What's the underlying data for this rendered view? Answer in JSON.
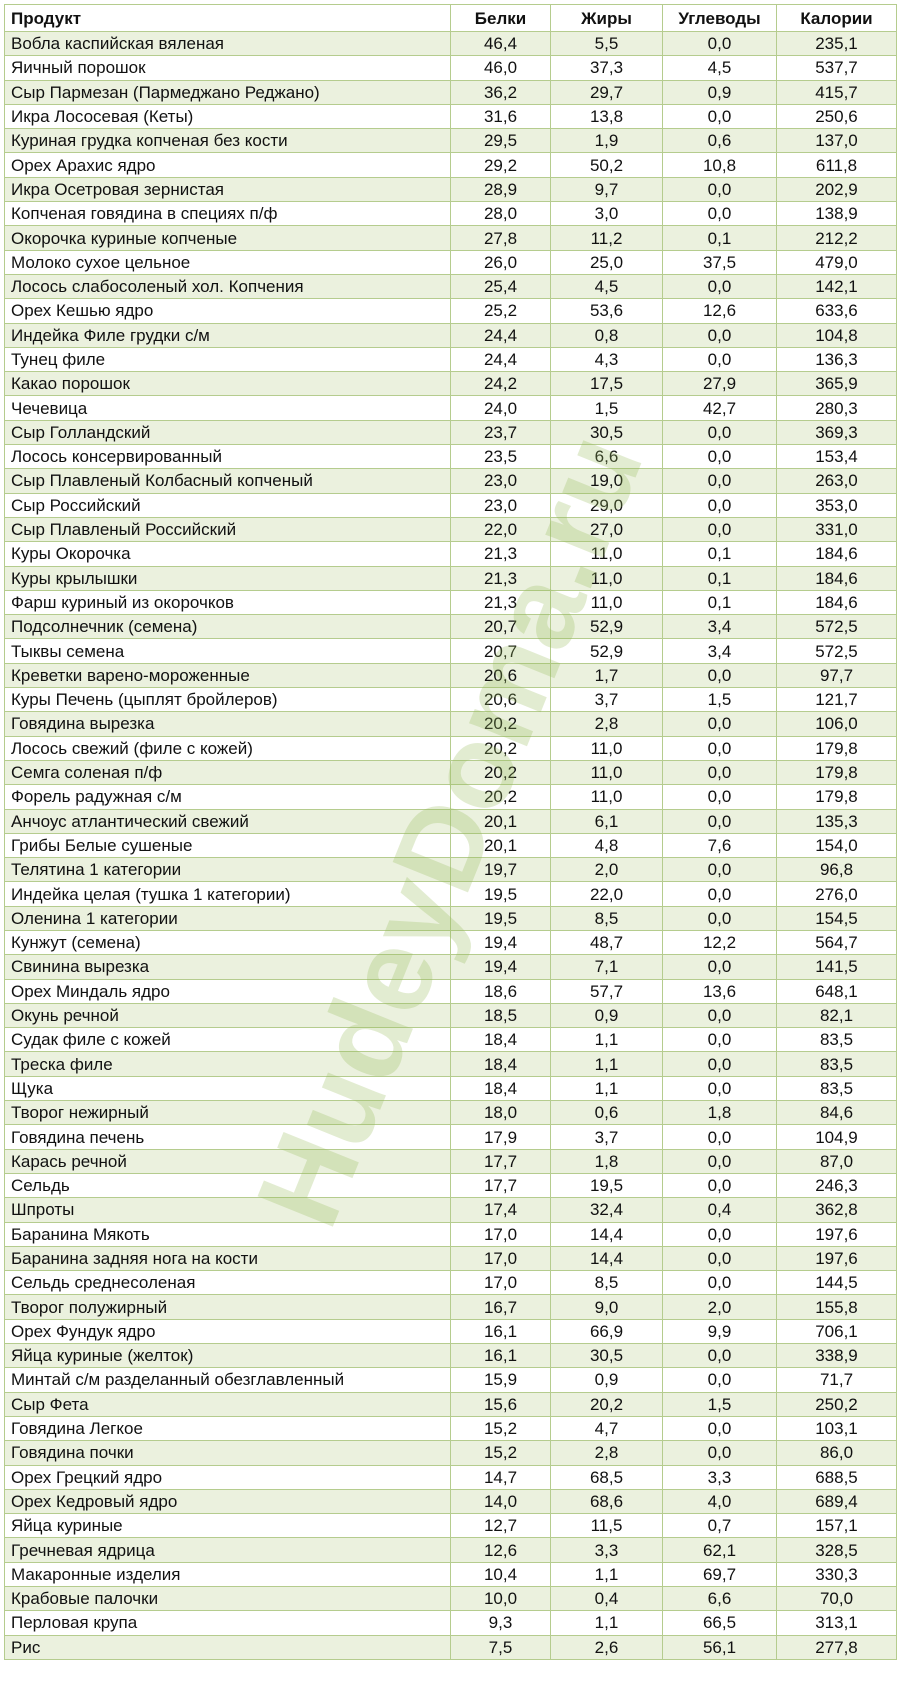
{
  "watermark": "HudeyDoma.ru",
  "table": {
    "header": [
      "Продукт",
      "Белки",
      "Жиры",
      "Углеводы",
      "Калории"
    ],
    "rows": [
      [
        "Вобла каспийская вяленая",
        "46,4",
        "5,5",
        "0,0",
        "235,1"
      ],
      [
        "Яичный порошок",
        "46,0",
        "37,3",
        "4,5",
        "537,7"
      ],
      [
        "Сыр Пармезан (Пармеджано Реджано)",
        "36,2",
        "29,7",
        "0,9",
        "415,7"
      ],
      [
        "Икра Лососевая (Кеты)",
        "31,6",
        "13,8",
        "0,0",
        "250,6"
      ],
      [
        "Куриная грудка копченая без кости",
        "29,5",
        "1,9",
        "0,6",
        "137,0"
      ],
      [
        "Орех Арахис ядро",
        "29,2",
        "50,2",
        "10,8",
        "611,8"
      ],
      [
        "Икра Осетровая зернистая",
        "28,9",
        "9,7",
        "0,0",
        "202,9"
      ],
      [
        "Копченая говядина в специях п/ф",
        "28,0",
        "3,0",
        "0,0",
        "138,9"
      ],
      [
        "Окорочка куриные копченые",
        "27,8",
        "11,2",
        "0,1",
        "212,2"
      ],
      [
        "Молоко сухое цельное",
        "26,0",
        "25,0",
        "37,5",
        "479,0"
      ],
      [
        "Лосось слабосоленый хол. Копчения",
        "25,4",
        "4,5",
        "0,0",
        "142,1"
      ],
      [
        "Орех Кешью ядро",
        "25,2",
        "53,6",
        "12,6",
        "633,6"
      ],
      [
        "Индейка Филе грудки с/м",
        "24,4",
        "0,8",
        "0,0",
        "104,8"
      ],
      [
        "Тунец филе",
        "24,4",
        "4,3",
        "0,0",
        "136,3"
      ],
      [
        "Какао порошок",
        "24,2",
        "17,5",
        "27,9",
        "365,9"
      ],
      [
        "Чечевица",
        "24,0",
        "1,5",
        "42,7",
        "280,3"
      ],
      [
        "Сыр Голландский",
        "23,7",
        "30,5",
        "0,0",
        "369,3"
      ],
      [
        "Лосось консервированный",
        "23,5",
        "6,6",
        "0,0",
        "153,4"
      ],
      [
        "Сыр Плавленый Колбасный копченый",
        "23,0",
        "19,0",
        "0,0",
        "263,0"
      ],
      [
        "Сыр Российский",
        "23,0",
        "29,0",
        "0,0",
        "353,0"
      ],
      [
        "Сыр Плавленый Российский",
        "22,0",
        "27,0",
        "0,0",
        "331,0"
      ],
      [
        "Куры Окорочка",
        "21,3",
        "11,0",
        "0,1",
        "184,6"
      ],
      [
        "Куры крылышки",
        "21,3",
        "11,0",
        "0,1",
        "184,6"
      ],
      [
        "Фарш куриный из окорочков",
        "21,3",
        "11,0",
        "0,1",
        "184,6"
      ],
      [
        "Подсолнечник (семена)",
        "20,7",
        "52,9",
        "3,4",
        "572,5"
      ],
      [
        "Тыквы семена",
        "20,7",
        "52,9",
        "3,4",
        "572,5"
      ],
      [
        "Креветки варено-мороженные",
        "20,6",
        "1,7",
        "0,0",
        "97,7"
      ],
      [
        "Куры Печень (цыплят бройлеров)",
        "20,6",
        "3,7",
        "1,5",
        "121,7"
      ],
      [
        "Говядина вырезка",
        "20,2",
        "2,8",
        "0,0",
        "106,0"
      ],
      [
        "Лосось свежий (филе с кожей)",
        "20,2",
        "11,0",
        "0,0",
        "179,8"
      ],
      [
        "Семга соленая п/ф",
        "20,2",
        "11,0",
        "0,0",
        "179,8"
      ],
      [
        "Форель радужная с/м",
        "20,2",
        "11,0",
        "0,0",
        "179,8"
      ],
      [
        "Анчоус атлантический свежий",
        "20,1",
        "6,1",
        "0,0",
        "135,3"
      ],
      [
        "Грибы Белые сушеные",
        "20,1",
        "4,8",
        "7,6",
        "154,0"
      ],
      [
        "Телятина 1 категории",
        "19,7",
        "2,0",
        "0,0",
        "96,8"
      ],
      [
        "Индейка целая (тушка 1 категории)",
        "19,5",
        "22,0",
        "0,0",
        "276,0"
      ],
      [
        "Оленина 1 категории",
        "19,5",
        "8,5",
        "0,0",
        "154,5"
      ],
      [
        "Кунжут (семена)",
        "19,4",
        "48,7",
        "12,2",
        "564,7"
      ],
      [
        "Свинина вырезка",
        "19,4",
        "7,1",
        "0,0",
        "141,5"
      ],
      [
        "Орех Миндаль ядро",
        "18,6",
        "57,7",
        "13,6",
        "648,1"
      ],
      [
        "Окунь речной",
        "18,5",
        "0,9",
        "0,0",
        "82,1"
      ],
      [
        "Судак филе с кожей",
        "18,4",
        "1,1",
        "0,0",
        "83,5"
      ],
      [
        "Треска филе",
        "18,4",
        "1,1",
        "0,0",
        "83,5"
      ],
      [
        "Щука",
        "18,4",
        "1,1",
        "0,0",
        "83,5"
      ],
      [
        "Творог нежирный",
        "18,0",
        "0,6",
        "1,8",
        "84,6"
      ],
      [
        "Говядина печень",
        "17,9",
        "3,7",
        "0,0",
        "104,9"
      ],
      [
        "Карась речной",
        "17,7",
        "1,8",
        "0,0",
        "87,0"
      ],
      [
        "Сельдь",
        "17,7",
        "19,5",
        "0,0",
        "246,3"
      ],
      [
        "Шпроты",
        "17,4",
        "32,4",
        "0,4",
        "362,8"
      ],
      [
        "Баранина Мякоть",
        "17,0",
        "14,4",
        "0,0",
        "197,6"
      ],
      [
        "Баранина задняя нога на кости",
        "17,0",
        "14,4",
        "0,0",
        "197,6"
      ],
      [
        "Сельдь среднесоленая",
        "17,0",
        "8,5",
        "0,0",
        "144,5"
      ],
      [
        "Творог полужирный",
        "16,7",
        "9,0",
        "2,0",
        "155,8"
      ],
      [
        "Орех Фундук ядро",
        "16,1",
        "66,9",
        "9,9",
        "706,1"
      ],
      [
        "Яйца куриные (желток)",
        "16,1",
        "30,5",
        "0,0",
        "338,9"
      ],
      [
        "Минтай с/м разделанный обезглавленный",
        "15,9",
        "0,9",
        "0,0",
        "71,7"
      ],
      [
        "Сыр Фета",
        "15,6",
        "20,2",
        "1,5",
        "250,2"
      ],
      [
        "Говядина Легкое",
        "15,2",
        "4,7",
        "0,0",
        "103,1"
      ],
      [
        "Говядина почки",
        "15,2",
        "2,8",
        "0,0",
        "86,0"
      ],
      [
        "Орех Грецкий ядро",
        "14,7",
        "68,5",
        "3,3",
        "688,5"
      ],
      [
        "Орех Кедровый ядро",
        "14,0",
        "68,6",
        "4,0",
        "689,4"
      ],
      [
        "Яйца куриные",
        "12,7",
        "11,5",
        "0,7",
        "157,1"
      ],
      [
        "Гречневая ядрица",
        "12,6",
        "3,3",
        "62,1",
        "328,5"
      ],
      [
        "Макаронные изделия",
        "10,4",
        "1,1",
        "69,7",
        "330,3"
      ],
      [
        "Крабовые палочки",
        "10,0",
        "0,4",
        "6,6",
        "70,0"
      ],
      [
        "Перловая крупа",
        "9,3",
        "1,1",
        "66,5",
        "313,1"
      ],
      [
        "Рис",
        "7,5",
        "2,6",
        "56,1",
        "277,8"
      ]
    ]
  }
}
